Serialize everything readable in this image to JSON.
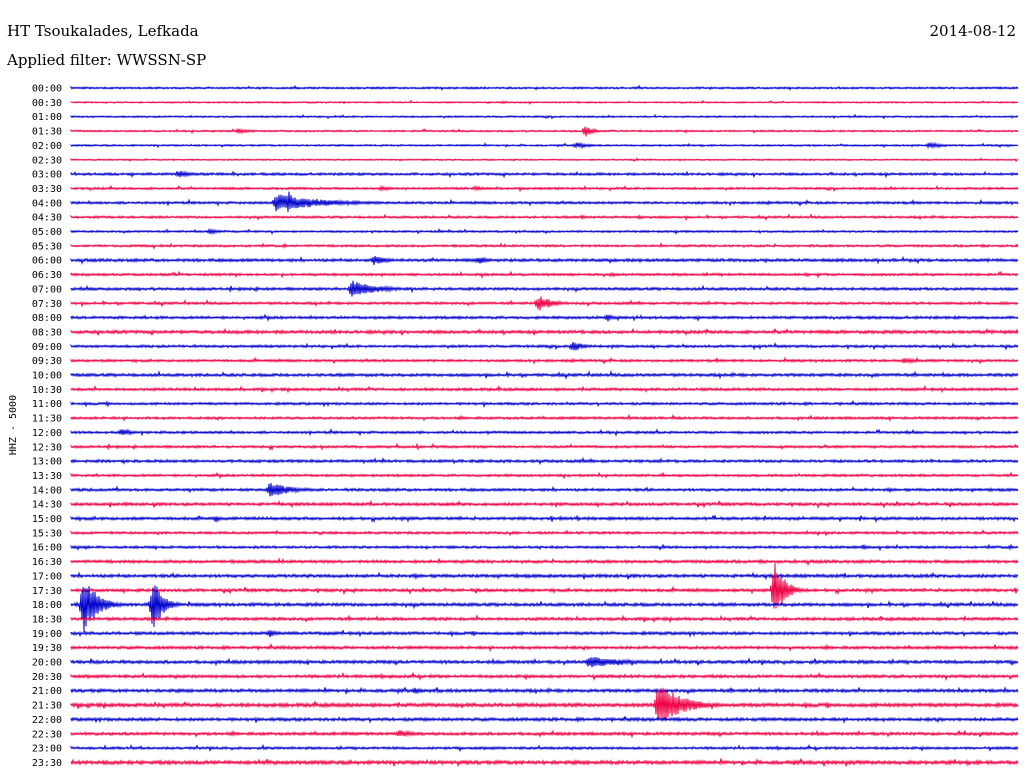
{
  "header": {
    "station": "HT Tsoukalades, Lefkada",
    "filter": "Applied filter: WWSSN-SP",
    "date": "2014-08-12"
  },
  "chart_data": {
    "type": "line",
    "title": "HT Tsoukalades, Lefkada",
    "subtitle": "Applied filter: WWSSN-SP",
    "ylabel": "HHZ - 5000",
    "xlabel": "",
    "grid": false,
    "colors": [
      "#0000cc",
      "#ee0044"
    ],
    "row_labels": [
      "00:00",
      "00:30",
      "01:00",
      "01:30",
      "02:00",
      "02:30",
      "03:00",
      "03:30",
      "04:00",
      "04:30",
      "05:00",
      "05:30",
      "06:00",
      "06:30",
      "07:00",
      "07:30",
      "08:00",
      "08:30",
      "09:00",
      "09:30",
      "10:00",
      "10:30",
      "11:00",
      "11:30",
      "12:00",
      "12:30",
      "13:00",
      "13:30",
      "14:00",
      "14:30",
      "15:00",
      "15:30",
      "16:00",
      "16:30",
      "17:00",
      "17:30",
      "18:00",
      "18:30",
      "19:00",
      "19:30",
      "20:00",
      "20:30",
      "21:00",
      "21:30",
      "22:00",
      "22:30",
      "23:00",
      "23:30"
    ],
    "row_duration_minutes": 30,
    "noise": [
      0.8,
      0.6,
      0.7,
      0.7,
      0.7,
      0.6,
      1.0,
      0.9,
      1.0,
      0.9,
      0.8,
      0.9,
      1.2,
      1.0,
      1.1,
      1.0,
      1.1,
      1.3,
      1.0,
      1.0,
      1.2,
      1.1,
      1.0,
      1.0,
      1.0,
      1.0,
      1.1,
      1.0,
      1.1,
      1.2,
      1.2,
      1.0,
      1.0,
      1.2,
      1.3,
      1.2,
      1.3,
      1.2,
      1.2,
      1.2,
      1.3,
      1.2,
      1.3,
      1.5,
      1.3,
      1.2,
      1.0,
      1.5
    ],
    "events": [
      {
        "row": 1,
        "minute": 13.7,
        "amplitude": 1.5,
        "duration": 0.3
      },
      {
        "row": 3,
        "minute": 5.3,
        "amplitude": 2.5,
        "duration": 0.8
      },
      {
        "row": 3,
        "minute": 16.3,
        "amplitude": 6,
        "duration": 0.4
      },
      {
        "row": 4,
        "minute": 16.0,
        "amplitude": 3,
        "duration": 0.8
      },
      {
        "row": 4,
        "minute": 27.2,
        "amplitude": 3,
        "duration": 0.8
      },
      {
        "row": 6,
        "minute": 3.4,
        "amplitude": 4,
        "duration": 0.8
      },
      {
        "row": 7,
        "minute": 9.8,
        "amplitude": 2,
        "duration": 1.0
      },
      {
        "row": 7,
        "minute": 12.8,
        "amplitude": 2,
        "duration": 1.0
      },
      {
        "row": 8,
        "minute": 6.5,
        "amplitude": 9,
        "duration": 2.5
      },
      {
        "row": 8,
        "minute": 6.9,
        "amplitude": 13,
        "duration": 0.3
      },
      {
        "row": 9,
        "minute": 16.2,
        "amplitude": 2,
        "duration": 0.3
      },
      {
        "row": 9,
        "minute": 18.0,
        "amplitude": 2,
        "duration": 0.3
      },
      {
        "row": 10,
        "minute": 4.4,
        "amplitude": 2.5,
        "duration": 0.6
      },
      {
        "row": 12,
        "minute": 9.6,
        "amplitude": 5,
        "duration": 0.7
      },
      {
        "row": 12,
        "minute": 12.9,
        "amplitude": 4,
        "duration": 0.6
      },
      {
        "row": 13,
        "minute": 17.1,
        "amplitude": 2,
        "duration": 0.5
      },
      {
        "row": 13,
        "minute": 23.3,
        "amplitude": 2.5,
        "duration": 0.2
      },
      {
        "row": 14,
        "minute": 8.9,
        "amplitude": 9,
        "duration": 1.3
      },
      {
        "row": 15,
        "minute": 14.8,
        "amplitude": 9,
        "duration": 0.7
      },
      {
        "row": 16,
        "minute": 17.0,
        "amplitude": 4,
        "duration": 0.3
      },
      {
        "row": 18,
        "minute": 15.9,
        "amplitude": 6,
        "duration": 0.5
      },
      {
        "row": 19,
        "minute": 26.4,
        "amplitude": 3,
        "duration": 0.8
      },
      {
        "row": 24,
        "minute": 1.6,
        "amplitude": 4,
        "duration": 0.6
      },
      {
        "row": 28,
        "minute": 6.3,
        "amplitude": 8,
        "duration": 1.1
      },
      {
        "row": 30,
        "minute": 4.6,
        "amplitude": 4,
        "duration": 0.2
      },
      {
        "row": 32,
        "minute": 25.1,
        "amplitude": 3,
        "duration": 0.2
      },
      {
        "row": 35,
        "minute": 22.3,
        "amplitude": 32,
        "duration": 0.5
      },
      {
        "row": 36,
        "minute": 0.4,
        "amplitude": 30,
        "duration": 0.7
      },
      {
        "row": 36,
        "minute": 2.6,
        "amplitude": 28,
        "duration": 0.5
      },
      {
        "row": 38,
        "minute": 6.3,
        "amplitude": 5,
        "duration": 0.4
      },
      {
        "row": 40,
        "minute": 16.4,
        "amplitude": 6,
        "duration": 2.0
      },
      {
        "row": 42,
        "minute": 10.9,
        "amplitude": 3,
        "duration": 0.6
      },
      {
        "row": 43,
        "minute": 18.6,
        "amplitude": 24,
        "duration": 1.2
      },
      {
        "row": 45,
        "minute": 10.4,
        "amplitude": 4,
        "duration": 0.8
      }
    ]
  }
}
